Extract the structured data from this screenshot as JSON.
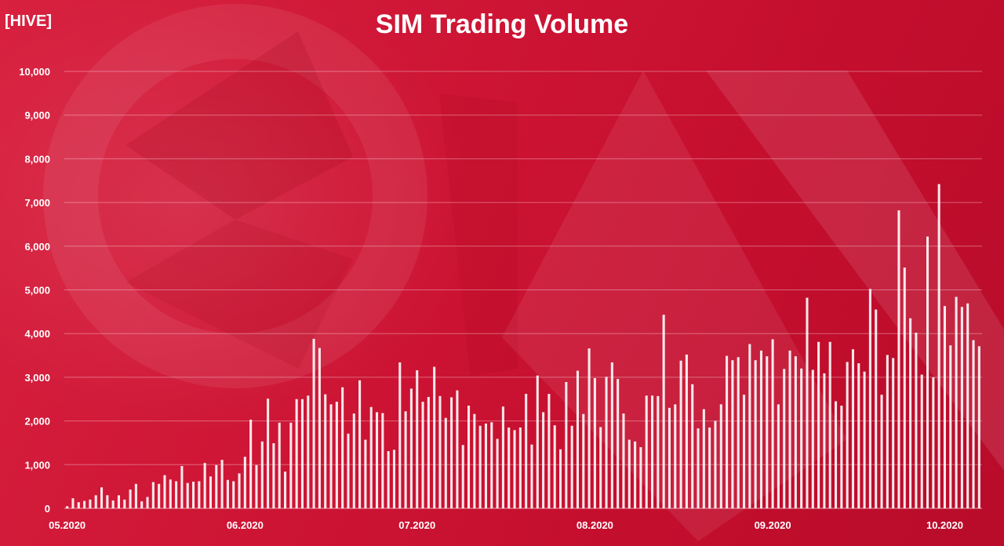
{
  "header": {
    "unit": "[HIVE]",
    "title": "SIM Trading Volume"
  },
  "chart_data": {
    "type": "bar",
    "title": "SIM Trading Volume",
    "ylabel": "[HIVE]",
    "ylim": [
      0,
      10000
    ],
    "yticks": [
      "0",
      "1,000",
      "2,000",
      "3,000",
      "4,000",
      "5,000",
      "6,000",
      "7,000",
      "8,000",
      "9,000",
      "10,000"
    ],
    "xtick_labels": [
      {
        "label": "05.2020",
        "index": 0
      },
      {
        "label": "06.2020",
        "index": 31
      },
      {
        "label": "07.2020",
        "index": 61
      },
      {
        "label": "08.2020",
        "index": 92
      },
      {
        "label": "09.2020",
        "index": 123
      },
      {
        "label": "10.2020",
        "index": 153
      }
    ],
    "grid": true,
    "bar_color": "#ffffff",
    "values": [
      50,
      230,
      140,
      170,
      200,
      300,
      480,
      300,
      180,
      300,
      200,
      430,
      560,
      160,
      260,
      600,
      560,
      760,
      660,
      620,
      970,
      580,
      610,
      620,
      1040,
      730,
      990,
      1110,
      650,
      620,
      800,
      1180,
      2030,
      990,
      1530,
      2510,
      1490,
      1960,
      840,
      1960,
      2500,
      2500,
      2580,
      3880,
      3670,
      2610,
      2380,
      2440,
      2770,
      1710,
      2170,
      2930,
      1570,
      2320,
      2200,
      2180,
      1310,
      1340,
      3340,
      2220,
      2740,
      3160,
      2440,
      2550,
      3240,
      2570,
      2070,
      2540,
      2700,
      1450,
      2350,
      2160,
      1890,
      1940,
      1970,
      1590,
      2330,
      1850,
      1790,
      1850,
      2620,
      1460,
      3040,
      2200,
      2620,
      1900,
      1350,
      2890,
      1890,
      3150,
      2160,
      3660,
      2980,
      1860,
      3010,
      3340,
      2960,
      2170,
      1570,
      1530,
      1400,
      2580,
      2580,
      2570,
      4430,
      2300,
      2380,
      3380,
      3520,
      2840,
      1830,
      2270,
      1850,
      2000,
      2380,
      3490,
      3390,
      3460,
      2600,
      3760,
      3390,
      3610,
      3480,
      3870,
      2380,
      3190,
      3610,
      3480,
      3200,
      4820,
      3170,
      3810,
      3090,
      3810,
      2450,
      2350,
      3350,
      3640,
      3320,
      3130,
      5020,
      4550,
      2600,
      3510,
      3440,
      6820,
      5510,
      4350,
      4020,
      3060,
      6220,
      3000,
      7420,
      4630,
      3730,
      4840,
      4610,
      4690,
      3850,
      3710
    ]
  }
}
